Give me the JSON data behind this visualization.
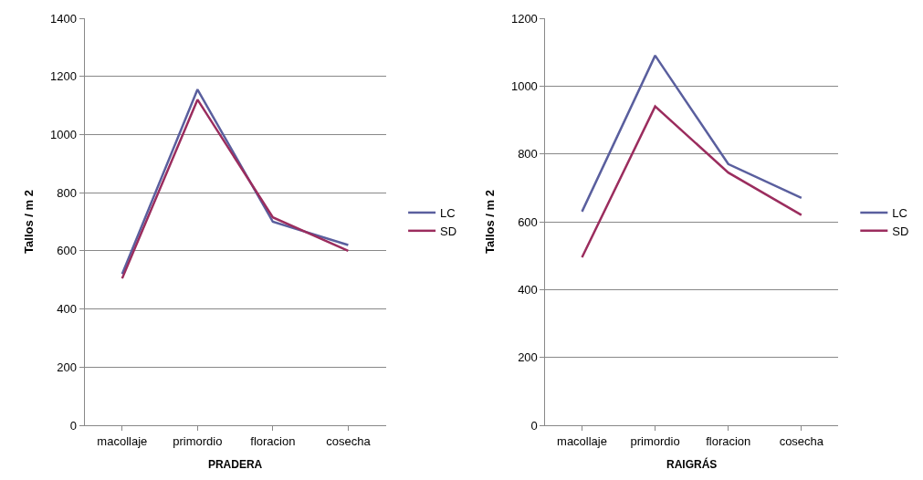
{
  "chart_data": [
    {
      "type": "line",
      "xlabel": "PRADERA",
      "ylabel": "Tallos / m 2",
      "categories": [
        "macollaje",
        "primordio",
        "floracion",
        "cosecha"
      ],
      "series": [
        {
          "name": "LC",
          "color": "#5a5f9e",
          "values": [
            520,
            1155,
            700,
            620
          ]
        },
        {
          "name": "SD",
          "color": "#9b2d5e",
          "values": [
            505,
            1120,
            715,
            600
          ]
        }
      ],
      "ylim": [
        0,
        1400
      ],
      "yticks": [
        0,
        200,
        400,
        600,
        800,
        1000,
        1200,
        1400
      ],
      "grid": "y",
      "legend": "right",
      "marker": "none",
      "line_style": "solid"
    },
    {
      "type": "line",
      "xlabel": "RAIGRÁS",
      "ylabel": "Tallos / m 2",
      "categories": [
        "macollaje",
        "primordio",
        "floracion",
        "cosecha"
      ],
      "series": [
        {
          "name": "LC",
          "color": "#5a5f9e",
          "values": [
            630,
            1090,
            770,
            670
          ]
        },
        {
          "name": "SD",
          "color": "#9b2d5e",
          "values": [
            495,
            940,
            745,
            620
          ]
        }
      ],
      "ylim": [
        0,
        1200
      ],
      "yticks": [
        0,
        200,
        400,
        600,
        800,
        1000,
        1200
      ],
      "grid": "y",
      "legend": "right",
      "marker": "none",
      "line_style": "solid"
    }
  ]
}
